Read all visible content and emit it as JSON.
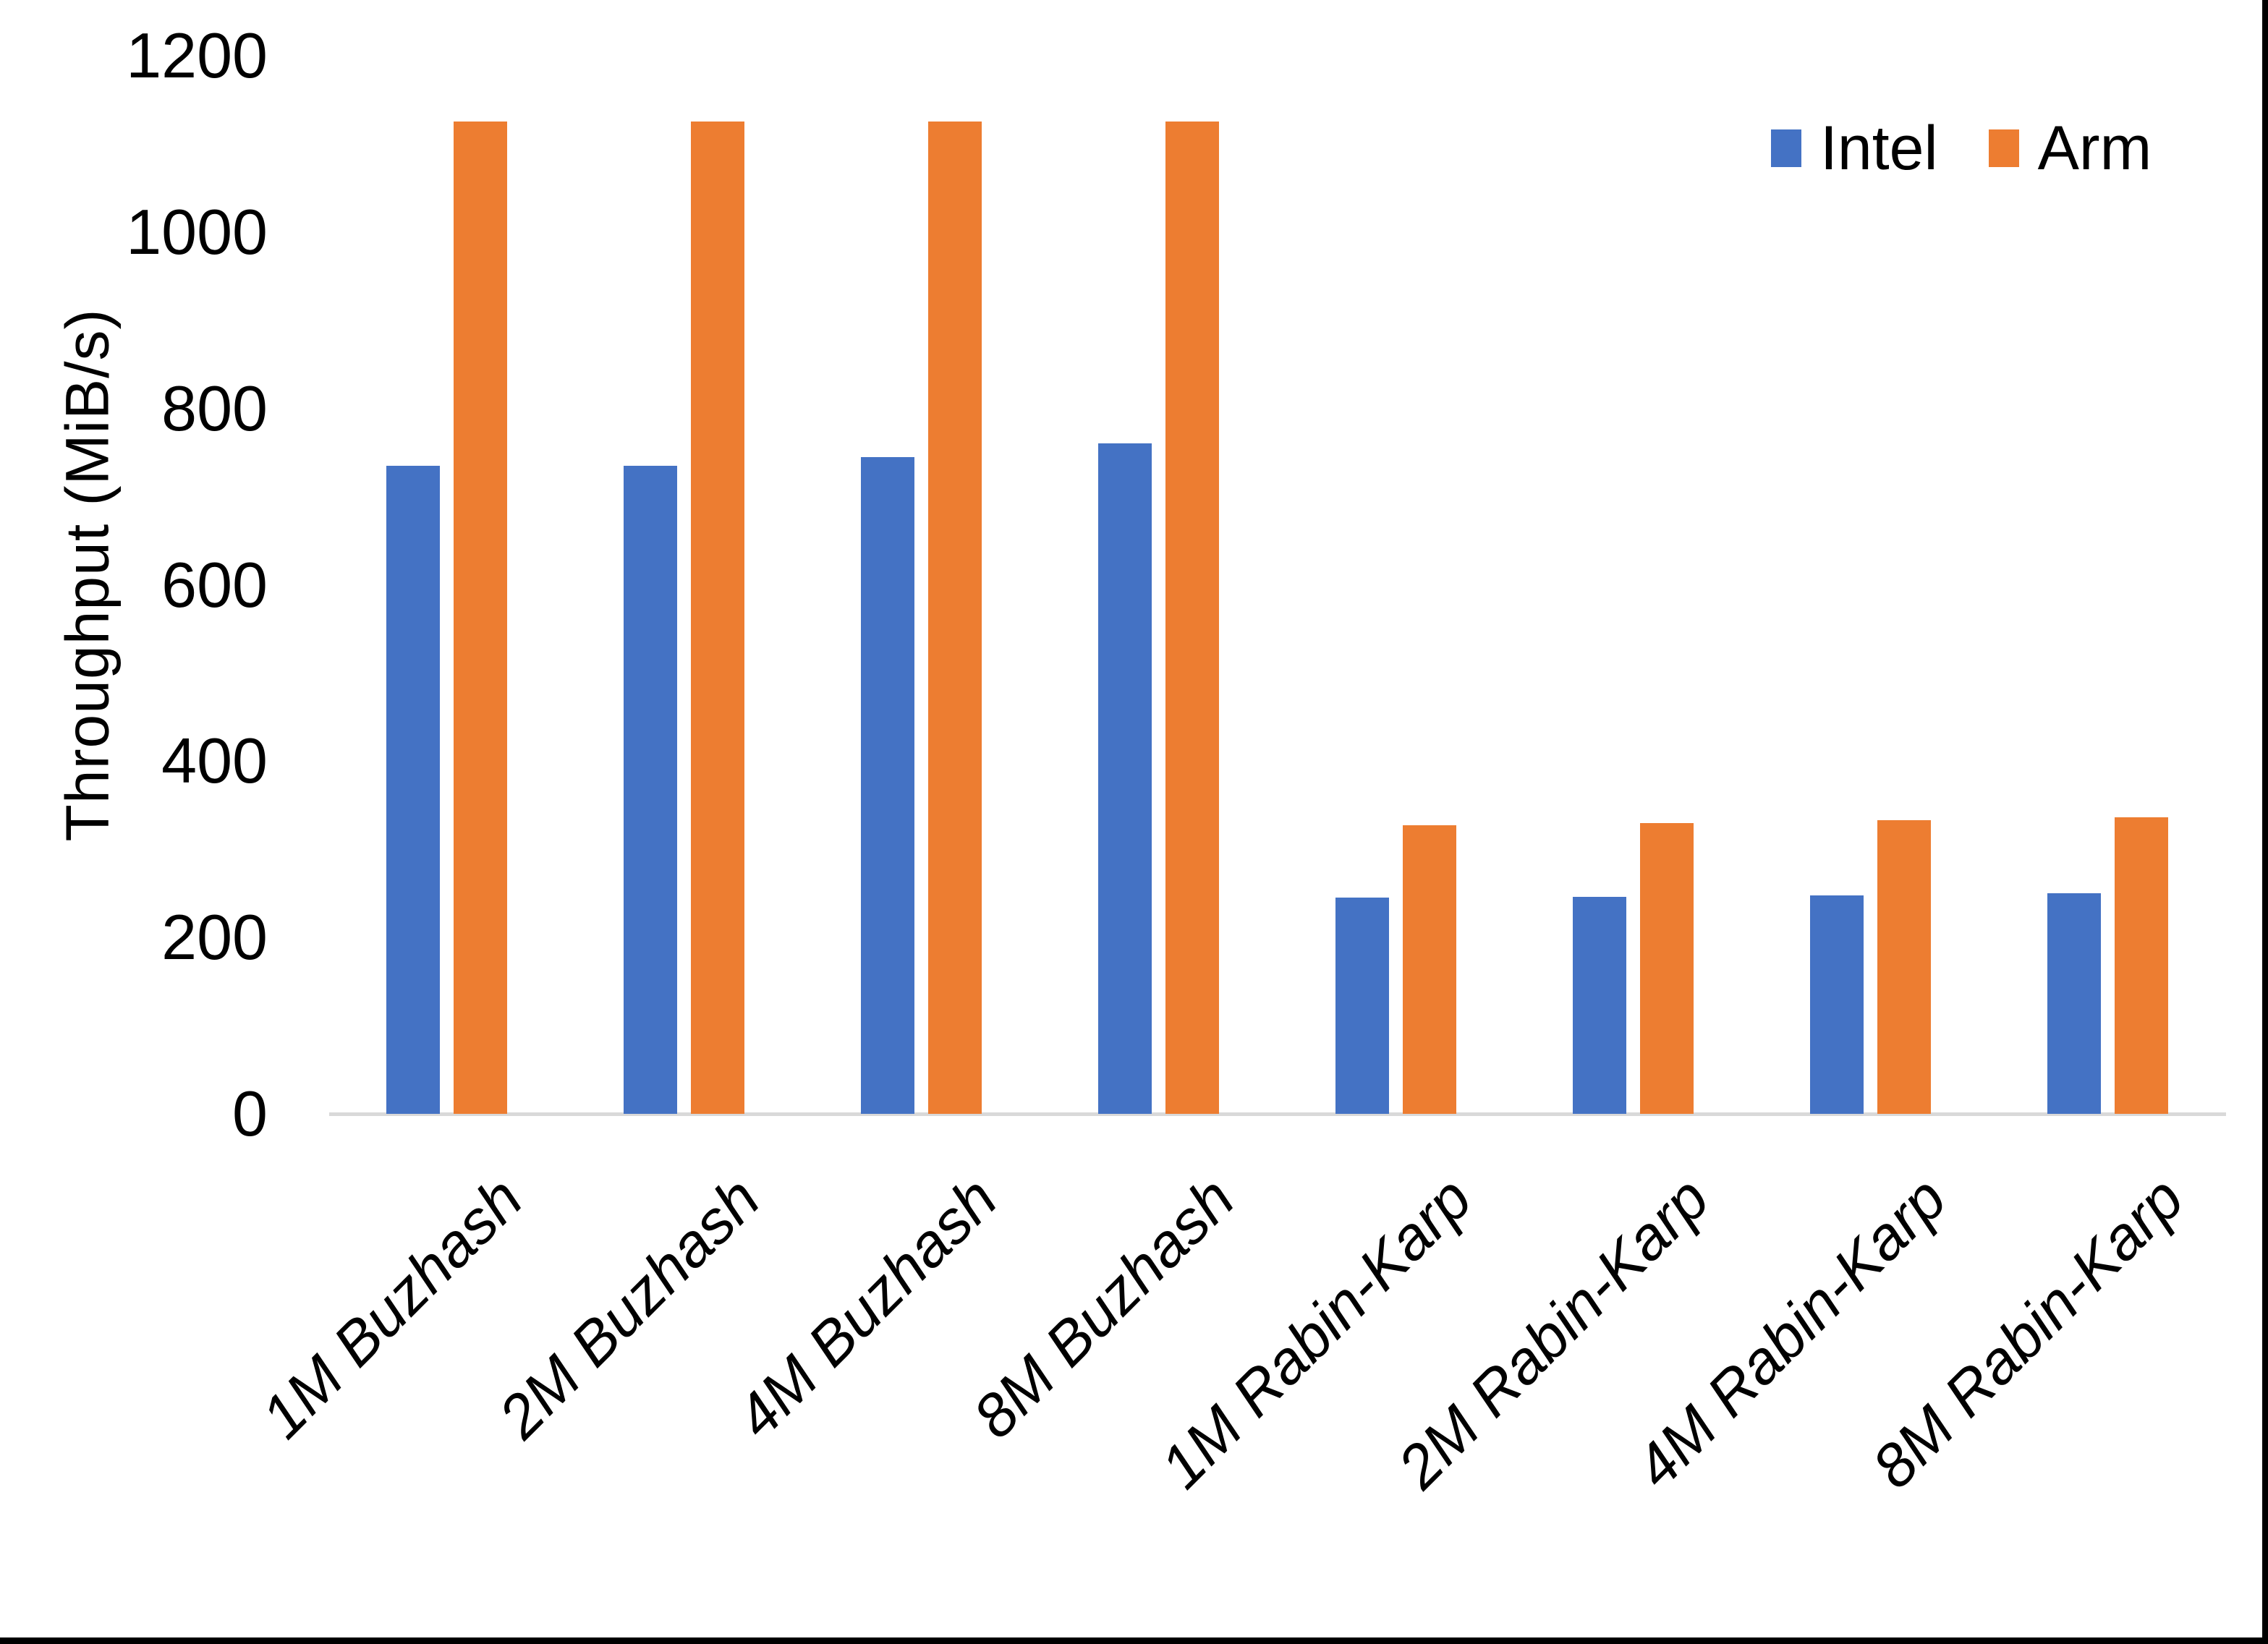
{
  "chart_data": {
    "type": "bar",
    "title": "",
    "xlabel": "",
    "ylabel": "Throughput (MiB/s)",
    "categories": [
      "1M Buzhash",
      "2M Buzhash",
      "4M Buzhash",
      "8M Buzhash",
      "1M Rabin-Karp",
      "2M Rabin-Karp",
      "4M Rabin-Karp",
      "8M Rabin-Karp"
    ],
    "series": [
      {
        "name": "Intel",
        "color": "#4472C4",
        "values": [
          735,
          735,
          745,
          760,
          245,
          246,
          248,
          250
        ]
      },
      {
        "name": "Arm",
        "color": "#ED7D31",
        "values": [
          1125,
          1125,
          1125,
          1125,
          327,
          330,
          333,
          336
        ]
      }
    ],
    "ylim": [
      0,
      1200
    ],
    "yticks": [
      0,
      200,
      400,
      600,
      800,
      1000,
      1200
    ],
    "grid": false,
    "legend_position": "top-right",
    "axis_line_color": "#D9D9D9",
    "background_color": "#FFFFFF",
    "border_color": "#000000"
  }
}
